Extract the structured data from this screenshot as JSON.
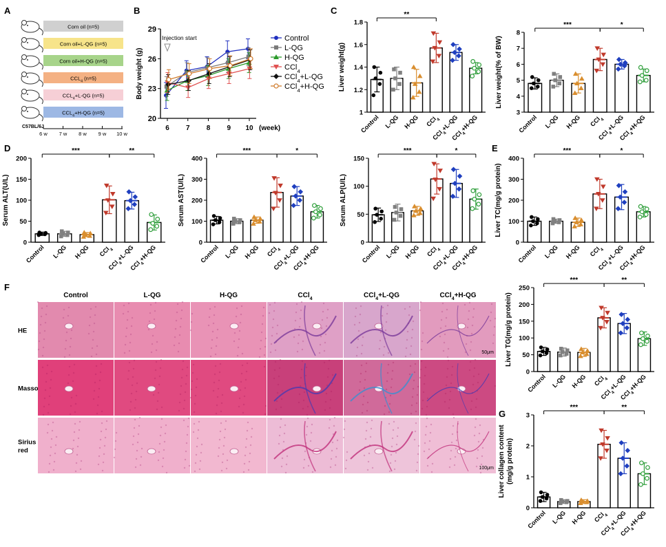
{
  "panel_letters": {
    "A": "A",
    "B": "B",
    "C": "C",
    "D": "D",
    "E": "E",
    "F": "F",
    "G": "G"
  },
  "panelA": {
    "groups": [
      {
        "label": "Corn oil (n=5)",
        "color": "#d0d0d0"
      },
      {
        "label": "Corn oil+L-QG  (n=5)",
        "color": "#f7e48a"
      },
      {
        "label": "Corn oil+H-QG  (n=5)",
        "color": "#a7d48a"
      },
      {
        "label": "CCL4 (n=5)",
        "color": "#f4b183"
      },
      {
        "label": "CCL4+L-QG  (n=5)",
        "color": "#f6cfd6"
      },
      {
        "label": "CCL4+H-QG  (n=5)",
        "color": "#9db8e4"
      }
    ],
    "strain": "C57BL/6J",
    "timeline": [
      "6 w",
      "7 w",
      "8 w",
      "9 w",
      "10 w"
    ]
  },
  "colors": {
    "Control": "#000000",
    "L-QG": "#808080",
    "H-QG": "#d98e2f",
    "CCl4": "#c0392b",
    "CCl4+L-QG": "#1f3fbf",
    "CCl4+H-QG": "#2e9e3a",
    "line_Control": "#1f2fbf",
    "line_LQG": "#7a7a7a",
    "line_HQG": "#2a9a2a",
    "line_CCl4": "#e05050",
    "line_CCl4LQG": "#111111",
    "line_CCl4HQG": "#d07a2a"
  },
  "categories": [
    "Control",
    "L-QG",
    "H-QG",
    "CCl4",
    "CCl4+L-QG",
    "CCl4+H-QG"
  ],
  "chart_data": [
    {
      "id": "B",
      "type": "line",
      "title": "",
      "xlabel": "(week)",
      "ylabel": "Body weight (g)",
      "x": [
        6,
        7,
        8,
        9,
        10
      ],
      "ylim": [
        20,
        29
      ],
      "yticks": [
        20,
        23,
        26,
        29
      ],
      "annotation": "Injection start",
      "series": [
        {
          "name": "Control",
          "values": [
            22.3,
            24.8,
            25.2,
            26.7,
            27.0
          ],
          "err": [
            1.3,
            1.0,
            1.0,
            1.1,
            1.0
          ]
        },
        {
          "name": "L-QG",
          "values": [
            23.2,
            24.6,
            25.1,
            25.6,
            26.2
          ],
          "err": [
            1.0,
            1.0,
            1.0,
            1.0,
            0.9
          ]
        },
        {
          "name": "H-QG",
          "values": [
            22.8,
            23.8,
            24.3,
            25.0,
            25.6
          ],
          "err": [
            1.0,
            1.0,
            1.0,
            1.0,
            1.0
          ]
        },
        {
          "name": "CCl4",
          "values": [
            23.6,
            23.1,
            24.0,
            24.5,
            25.0
          ],
          "err": [
            1.0,
            1.0,
            1.0,
            1.0,
            1.0
          ]
        },
        {
          "name": "CCl4+L-QG",
          "values": [
            23.4,
            23.8,
            24.5,
            25.2,
            25.9
          ],
          "err": [
            1.0,
            1.0,
            1.0,
            1.0,
            1.0
          ]
        },
        {
          "name": "CCl4+H-QG",
          "values": [
            23.9,
            24.5,
            25.0,
            25.3,
            26.0
          ],
          "err": [
            1.0,
            1.0,
            1.0,
            1.0,
            1.0
          ]
        }
      ]
    },
    {
      "id": "C1",
      "type": "bar",
      "ylabel": "Liver weight(g)",
      "ylim": [
        1.0,
        1.8
      ],
      "yticks": [
        1.0,
        1.2,
        1.4,
        1.6,
        1.8
      ],
      "values": [
        1.29,
        1.3,
        1.26,
        1.57,
        1.53,
        1.39
      ],
      "err": [
        0.11,
        0.1,
        0.12,
        0.13,
        0.07,
        0.05
      ],
      "points": [
        [
          1.15,
          1.25,
          1.3,
          1.35,
          1.4
        ],
        [
          1.2,
          1.25,
          1.3,
          1.35,
          1.38
        ],
        [
          1.13,
          1.18,
          1.25,
          1.32,
          1.4
        ],
        [
          1.45,
          1.5,
          1.57,
          1.62,
          1.7
        ],
        [
          1.46,
          1.5,
          1.53,
          1.56,
          1.6
        ],
        [
          1.32,
          1.36,
          1.39,
          1.42,
          1.45
        ]
      ],
      "sig": [
        {
          "from": 0,
          "to": 3,
          "label": "**"
        }
      ]
    },
    {
      "id": "C2",
      "type": "bar",
      "ylabel": "Liver weight(% of BW)",
      "ylim": [
        3,
        8
      ],
      "yticks": [
        3,
        4,
        5,
        6,
        7,
        8
      ],
      "values": [
        4.8,
        5.0,
        4.8,
        6.3,
        6.0,
        5.3
      ],
      "err": [
        0.35,
        0.4,
        0.6,
        0.7,
        0.3,
        0.4
      ],
      "points": [
        [
          4.5,
          4.6,
          4.8,
          5.0,
          5.2
        ],
        [
          4.6,
          4.8,
          5.0,
          5.2,
          5.4
        ],
        [
          4.2,
          4.5,
          4.8,
          5.1,
          5.4
        ],
        [
          5.6,
          6.0,
          6.3,
          6.6,
          7.0
        ],
        [
          5.7,
          5.9,
          6.0,
          6.1,
          6.3
        ],
        [
          4.9,
          5.0,
          5.3,
          5.6,
          5.8
        ]
      ],
      "sig": [
        {
          "from": 0,
          "to": 3,
          "label": "***"
        },
        {
          "from": 3,
          "to": 5,
          "label": "*"
        }
      ]
    },
    {
      "id": "D1",
      "type": "bar",
      "ylabel": "Serum ALT(U/L)",
      "ylim": [
        0,
        200
      ],
      "yticks": [
        0,
        50,
        100,
        150,
        200
      ],
      "values": [
        20,
        20,
        18,
        101,
        99,
        47
      ],
      "err": [
        4,
        6,
        5,
        33,
        20,
        18
      ],
      "points": [
        [
          17,
          19,
          20,
          22,
          23
        ],
        [
          14,
          17,
          20,
          23,
          26
        ],
        [
          13,
          15,
          18,
          21,
          23
        ],
        [
          70,
          85,
          100,
          115,
          135
        ],
        [
          80,
          90,
          99,
          108,
          120
        ],
        [
          30,
          38,
          45,
          55,
          66
        ]
      ],
      "sig": [
        {
          "from": 0,
          "to": 3,
          "label": "***"
        },
        {
          "from": 3,
          "to": 5,
          "label": "**"
        }
      ]
    },
    {
      "id": "D2",
      "type": "bar",
      "ylabel": "Serum AST(U/L)",
      "ylim": [
        0,
        400
      ],
      "yticks": [
        0,
        100,
        200,
        300,
        400
      ],
      "values": [
        105,
        100,
        105,
        237,
        220,
        145
      ],
      "err": [
        18,
        12,
        15,
        70,
        45,
        30
      ],
      "points": [
        [
          85,
          95,
          105,
          115,
          125
        ],
        [
          88,
          95,
          100,
          105,
          112
        ],
        [
          88,
          98,
          105,
          112,
          120
        ],
        [
          160,
          200,
          235,
          270,
          305
        ],
        [
          175,
          200,
          220,
          240,
          265
        ],
        [
          115,
          130,
          145,
          160,
          175
        ]
      ],
      "sig": [
        {
          "from": 0,
          "to": 3,
          "label": "***"
        },
        {
          "from": 3,
          "to": 5,
          "label": "*"
        }
      ]
    },
    {
      "id": "D3",
      "type": "bar",
      "ylabel": "Serum ALP(U/L)",
      "ylim": [
        0,
        150
      ],
      "yticks": [
        0,
        50,
        100,
        150
      ],
      "values": [
        49,
        53,
        56,
        113,
        105,
        77
      ],
      "err": [
        12,
        15,
        8,
        27,
        25,
        18
      ],
      "points": [
        [
          36,
          42,
          49,
          55,
          60
        ],
        [
          40,
          47,
          53,
          59,
          63
        ],
        [
          48,
          52,
          56,
          60,
          64
        ],
        [
          78,
          95,
          112,
          128,
          140
        ],
        [
          82,
          95,
          105,
          118,
          130
        ],
        [
          60,
          68,
          77,
          85,
          92
        ]
      ],
      "sig": [
        {
          "from": 0,
          "to": 3,
          "label": "***"
        },
        {
          "from": 3,
          "to": 5,
          "label": "*"
        }
      ]
    },
    {
      "id": "E",
      "type": "bar",
      "ylabel": "Liver TC(mg/g protein)",
      "ylim": [
        0,
        400
      ],
      "yticks": [
        0,
        100,
        200,
        300,
        400
      ],
      "values": [
        100,
        100,
        95,
        230,
        215,
        145
      ],
      "err": [
        20,
        10,
        20,
        70,
        60,
        25
      ],
      "points": [
        [
          80,
          90,
          100,
          110,
          120
        ],
        [
          90,
          95,
          100,
          105,
          110
        ],
        [
          75,
          85,
          95,
          105,
          115
        ],
        [
          160,
          200,
          230,
          265,
          300
        ],
        [
          160,
          190,
          215,
          240,
          270
        ],
        [
          120,
          132,
          145,
          158,
          170
        ]
      ],
      "sig": [
        {
          "from": 0,
          "to": 3,
          "label": "***"
        },
        {
          "from": 3,
          "to": 5,
          "label": "*"
        }
      ]
    },
    {
      "id": "F2",
      "type": "bar",
      "ylabel": "Liver TG(mg/g protein)",
      "ylim": [
        0,
        250
      ],
      "yticks": [
        0,
        50,
        100,
        150,
        200,
        250
      ],
      "values": [
        60,
        58,
        57,
        160,
        143,
        98
      ],
      "err": [
        12,
        12,
        12,
        30,
        30,
        20
      ],
      "points": [
        [
          48,
          55,
          60,
          66,
          72
        ],
        [
          48,
          53,
          58,
          63,
          68
        ],
        [
          46,
          52,
          57,
          62,
          67
        ],
        [
          130,
          148,
          160,
          175,
          190
        ],
        [
          115,
          130,
          143,
          155,
          170
        ],
        [
          80,
          90,
          98,
          106,
          115
        ]
      ],
      "sig": [
        {
          "from": 0,
          "to": 3,
          "label": "***"
        },
        {
          "from": 3,
          "to": 5,
          "label": "**"
        }
      ]
    },
    {
      "id": "G",
      "type": "bar",
      "ylabel": "Liver collagen content",
      "ylabel2": "(mg/g protein)",
      "ylim": [
        0,
        3
      ],
      "yticks": [
        0,
        1,
        2,
        3
      ],
      "values": [
        0.35,
        0.2,
        0.2,
        2.05,
        1.6,
        1.1
      ],
      "err": [
        0.15,
        0.06,
        0.06,
        0.45,
        0.5,
        0.35
      ],
      "points": [
        [
          0.22,
          0.3,
          0.35,
          0.42,
          0.5
        ],
        [
          0.15,
          0.18,
          0.2,
          0.22,
          0.25
        ],
        [
          0.15,
          0.18,
          0.2,
          0.22,
          0.25
        ],
        [
          1.6,
          1.85,
          2.05,
          2.25,
          2.5
        ],
        [
          1.1,
          1.35,
          1.6,
          1.85,
          2.1
        ],
        [
          0.75,
          0.95,
          1.1,
          1.3,
          1.45
        ]
      ],
      "sig": [
        {
          "from": 0,
          "to": 3,
          "label": "***"
        },
        {
          "from": 3,
          "to": 5,
          "label": "**"
        }
      ]
    }
  ],
  "histology": {
    "columns": [
      "Control",
      "L-QG",
      "H-QG",
      "CCl4",
      "CCl4+L-QG",
      "CCl4+H-QG"
    ],
    "rows": [
      "HE",
      "Masson",
      "Sirius red"
    ],
    "scale": "50μm",
    "scale_bottom": "100μm"
  }
}
